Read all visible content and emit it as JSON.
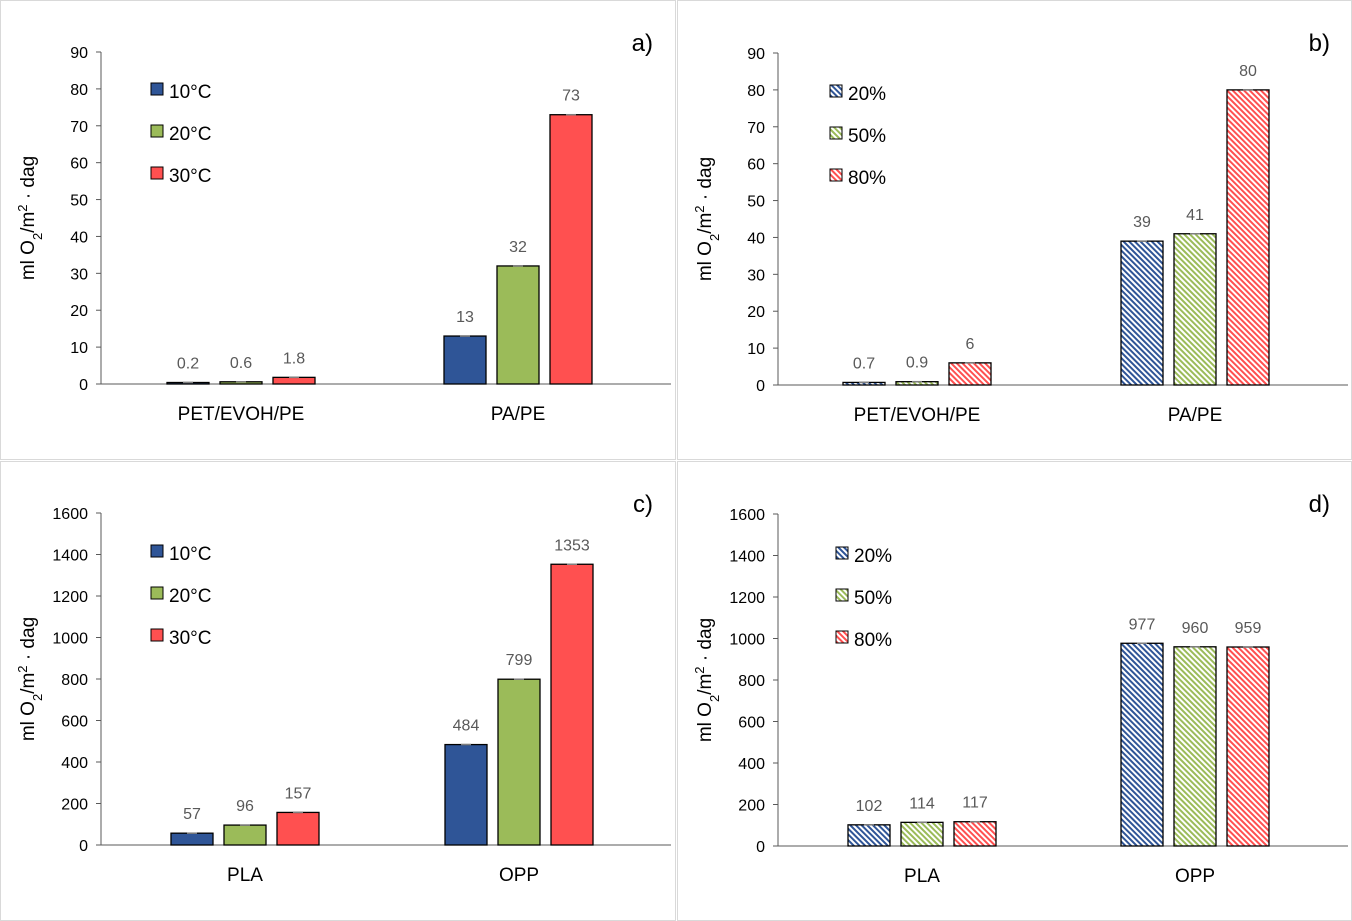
{
  "colors": {
    "c10": "#2F5597",
    "c20": "#9BBB59",
    "c30": "#FF5050",
    "h20": "#2F5597",
    "h50": "#9BBB59",
    "h80": "#FF5050",
    "axis": "#595959",
    "label": "#595959",
    "text": "#000000"
  },
  "chart_data": [
    {
      "panel": "a",
      "type": "bar",
      "panel_label": "a)",
      "ylabel": "ml O2/m2 · dag",
      "ylim": [
        0,
        90
      ],
      "yticks": [
        0,
        10,
        20,
        30,
        40,
        50,
        60,
        70,
        80,
        90
      ],
      "categories": [
        "PET/EVOH/PE",
        "PA/PE"
      ],
      "legend_position": "top-left",
      "series": [
        {
          "name": "10°C",
          "color_key": "c10",
          "hatched": false,
          "values": [
            0.2,
            13
          ],
          "labels": [
            "0.2",
            "13"
          ]
        },
        {
          "name": "20°C",
          "color_key": "c20",
          "hatched": false,
          "values": [
            0.6,
            32
          ],
          "labels": [
            "0.6",
            "32"
          ]
        },
        {
          "name": "30°C",
          "color_key": "c30",
          "hatched": false,
          "values": [
            1.8,
            73
          ],
          "labels": [
            "1.8",
            "73"
          ]
        }
      ]
    },
    {
      "panel": "b",
      "type": "bar",
      "panel_label": "b)",
      "ylabel": "ml O2/m2 · dag",
      "ylim": [
        0,
        90
      ],
      "yticks": [
        0,
        10,
        20,
        30,
        40,
        50,
        60,
        70,
        80,
        90
      ],
      "categories": [
        "PET/EVOH/PE",
        "PA/PE"
      ],
      "legend_position": "top-left",
      "series": [
        {
          "name": "20%",
          "color_key": "h20",
          "hatched": true,
          "values": [
            0.7,
            39
          ],
          "labels": [
            "0.7",
            "39"
          ]
        },
        {
          "name": "50%",
          "color_key": "h50",
          "hatched": true,
          "values": [
            0.9,
            41
          ],
          "labels": [
            "0.9",
            "41"
          ]
        },
        {
          "name": "80%",
          "color_key": "h80",
          "hatched": true,
          "values": [
            6,
            80
          ],
          "labels": [
            "6",
            "80"
          ]
        }
      ]
    },
    {
      "panel": "c",
      "type": "bar",
      "panel_label": "c)",
      "ylabel": "ml O2/m2 · dag",
      "ylim": [
        0,
        1600
      ],
      "yticks": [
        0,
        200,
        400,
        600,
        800,
        1000,
        1200,
        1400,
        1600
      ],
      "categories": [
        "PLA",
        "OPP"
      ],
      "legend_position": "top-left",
      "series": [
        {
          "name": "10°C",
          "color_key": "c10",
          "hatched": false,
          "values": [
            57,
            484
          ],
          "labels": [
            "57",
            "484"
          ]
        },
        {
          "name": "20°C",
          "color_key": "c20",
          "hatched": false,
          "values": [
            96,
            799
          ],
          "labels": [
            "96",
            "799"
          ]
        },
        {
          "name": "30°C",
          "color_key": "c30",
          "hatched": false,
          "values": [
            157,
            1353
          ],
          "labels": [
            "157",
            "1353"
          ]
        }
      ]
    },
    {
      "panel": "d",
      "type": "bar",
      "panel_label": "d)",
      "ylabel": "ml O2/m2 · dag",
      "ylim": [
        0,
        1600
      ],
      "yticks": [
        0,
        200,
        400,
        600,
        800,
        1000,
        1200,
        1400,
        1600
      ],
      "categories": [
        "PLA",
        "OPP"
      ],
      "legend_position": "top-left",
      "series": [
        {
          "name": "20%",
          "color_key": "h20",
          "hatched": true,
          "values": [
            102,
            977
          ],
          "labels": [
            "102",
            "977"
          ]
        },
        {
          "name": "50%",
          "color_key": "h50",
          "hatched": true,
          "values": [
            114,
            960
          ],
          "labels": [
            "114",
            "960"
          ]
        },
        {
          "name": "80%",
          "color_key": "h80",
          "hatched": true,
          "values": [
            117,
            959
          ],
          "labels": [
            "117",
            "959"
          ]
        }
      ]
    }
  ]
}
